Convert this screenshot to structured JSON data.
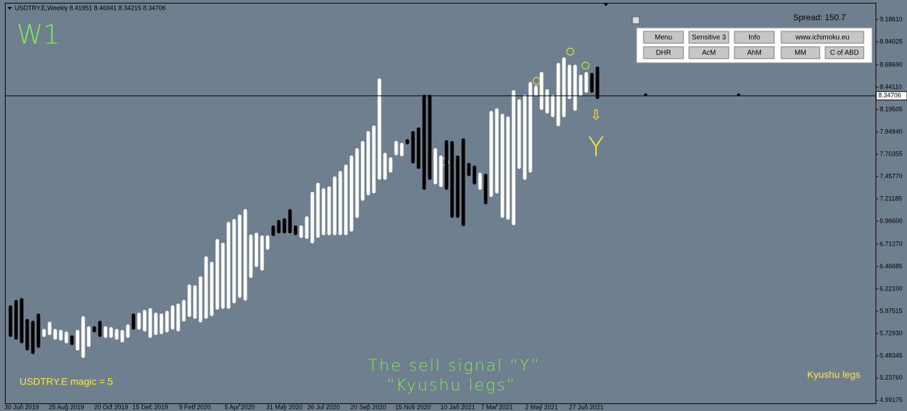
{
  "chart_data": {
    "type": "range_bar",
    "title": "USDTRY.E,Weekly  8.41951 8.46941 8.34215 8.34706",
    "timeframe": "W1",
    "spread": "Spread: 150.7",
    "signal_arrow": "⇩",
    "signal_letter": "Y",
    "caption": [
      "The sell signal “Y”",
      "“Kyushu legs”"
    ],
    "magic_label": "USDTRY.E  magic = 5",
    "corner_label": "Kyushu legs",
    "current_price": {
      "value": 8.34706,
      "label": "8.34706"
    },
    "ylim": [
      4.96,
      9.34
    ],
    "yticks": [
      {
        "value": 9.1861,
        "label": "9.18610"
      },
      {
        "value": 8.94025,
        "label": "8.94025"
      },
      {
        "value": 8.6869,
        "label": "8.68690"
      },
      {
        "value": 8.4411,
        "label": "8.44110"
      },
      {
        "value": 8.19505,
        "label": "8.19505"
      },
      {
        "value": 7.9494,
        "label": "7.94940"
      },
      {
        "value": 7.70355,
        "label": "7.70355"
      },
      {
        "value": 7.4577,
        "label": "7.45770"
      },
      {
        "value": 7.21185,
        "label": "7.21185"
      },
      {
        "value": 6.966,
        "label": "6.96600"
      },
      {
        "value": 6.7127,
        "label": "6.71270"
      },
      {
        "value": 6.46685,
        "label": "6.46685"
      },
      {
        "value": 6.221,
        "label": "6.22100"
      },
      {
        "value": 5.97515,
        "label": "5.97515"
      },
      {
        "value": 5.7293,
        "label": "5.72930"
      },
      {
        "value": 5.48345,
        "label": "5.48345"
      },
      {
        "value": 5.2376,
        "label": "5.23760"
      },
      {
        "value": 4.99175,
        "label": "4.99175"
      }
    ],
    "xticks": [
      {
        "value": 2,
        "label": "30 Jun 2019"
      },
      {
        "value": 10,
        "label": "25 Aug 2019"
      },
      {
        "value": 18,
        "label": "20 Oct 2019"
      },
      {
        "value": 25,
        "label": "15 Dec 2019"
      },
      {
        "value": 33,
        "label": "9 Feb 2020"
      },
      {
        "value": 41,
        "label": "5 Apr 2020"
      },
      {
        "value": 49,
        "label": "31 May 2020"
      },
      {
        "value": 56,
        "label": "26 Jul 2020"
      },
      {
        "value": 64,
        "label": "20 Sep 2020"
      },
      {
        "value": 72,
        "label": "15 Nov 2020"
      },
      {
        "value": 80,
        "label": "10 Jan 2021"
      },
      {
        "value": 87,
        "label": "7 Mar 2021"
      },
      {
        "value": 95,
        "label": "2 May 2021"
      },
      {
        "value": 103,
        "label": "27 Jun 2021"
      }
    ],
    "high": [
      6.02,
      6.08,
      6.1,
      5.87,
      5.85,
      5.93,
      5.76,
      5.84,
      5.76,
      5.75,
      5.73,
      5.69,
      5.75,
      5.9,
      5.79,
      5.79,
      5.85,
      5.79,
      5.78,
      5.76,
      5.75,
      5.81,
      5.93,
      5.94,
      5.97,
      5.99,
      5.94,
      5.93,
      5.96,
      6.02,
      6.04,
      6.08,
      6.25,
      6.24,
      6.34,
      6.56,
      6.5,
      6.75,
      6.71,
      6.94,
      6.97,
      7.02,
      7.08,
      6.8,
      6.82,
      6.79,
      6.79,
      6.9,
      6.96,
      6.98,
      7.08,
      6.9,
      6.9,
      7.0,
      7.27,
      7.37,
      7.31,
      7.33,
      7.44,
      7.5,
      7.57,
      7.67,
      7.75,
      7.83,
      7.94,
      8.0,
      8.52,
      7.7,
      7.65,
      7.83,
      7.81,
      7.85,
      7.94,
      7.98,
      8.34,
      8.34,
      7.75,
      7.67,
      7.84,
      7.83,
      7.67,
      7.86,
      7.59,
      7.56,
      7.48,
      7.47,
      8.16,
      8.19,
      8.13,
      8.1,
      8.39,
      8.29,
      8.34,
      8.48,
      8.44,
      8.59,
      8.4,
      8.34,
      8.69,
      8.75,
      8.67,
      8.67,
      8.56,
      8.59,
      8.58,
      8.65
    ],
    "low": [
      5.71,
      5.68,
      5.64,
      5.56,
      5.52,
      5.59,
      5.71,
      5.73,
      5.68,
      5.67,
      5.64,
      5.62,
      5.56,
      5.48,
      5.6,
      5.76,
      5.71,
      5.7,
      5.7,
      5.68,
      5.65,
      5.7,
      5.79,
      5.79,
      5.77,
      5.7,
      5.73,
      5.74,
      5.76,
      5.79,
      5.77,
      5.88,
      5.93,
      5.91,
      5.87,
      5.91,
      5.94,
      6.01,
      6.02,
      6.02,
      6.08,
      6.14,
      6.11,
      6.36,
      6.48,
      6.44,
      6.67,
      6.82,
      6.85,
      6.85,
      6.85,
      6.83,
      6.8,
      6.79,
      6.74,
      6.8,
      6.83,
      6.83,
      6.83,
      6.83,
      6.83,
      6.87,
      7.02,
      7.21,
      7.27,
      7.29,
      7.44,
      7.44,
      7.52,
      7.71,
      7.7,
      7.83,
      7.62,
      7.56,
      7.33,
      7.44,
      7.39,
      7.36,
      7.33,
      7.02,
      7.02,
      6.93,
      7.48,
      7.39,
      7.33,
      7.17,
      7.25,
      7.29,
      7.02,
      7.0,
      6.94,
      7.56,
      7.44,
      7.52,
      8.36,
      8.21,
      8.17,
      8.13,
      8.03,
      8.13,
      8.33,
      8.2,
      8.36,
      8.4,
      8.4,
      8.33
    ],
    "bar_colors": [
      "black",
      "black",
      "black",
      "black",
      "black",
      "black",
      "white",
      "white",
      "white",
      "white",
      "white",
      "black",
      "white",
      "white",
      "white",
      "black",
      "black",
      "white",
      "white",
      "white",
      "white",
      "white",
      "black",
      "white",
      "white",
      "white",
      "white",
      "white",
      "white",
      "white",
      "white",
      "white",
      "white",
      "white",
      "white",
      "white",
      "white",
      "white",
      "white",
      "white",
      "white",
      "white",
      "white",
      "white",
      "white",
      "white",
      "white",
      "black",
      "black",
      "black",
      "black",
      "black",
      "white",
      "white",
      "white",
      "white",
      "white",
      "white",
      "white",
      "white",
      "white",
      "white",
      "white",
      "white",
      "white",
      "white",
      "white",
      "white",
      "white",
      "white",
      "white",
      "black",
      "black",
      "black",
      "black",
      "black",
      "white",
      "white",
      "black",
      "black",
      "black",
      "black",
      "black",
      "black",
      "white",
      "black",
      "white",
      "white",
      "white",
      "white",
      "white",
      "white",
      "white",
      "white",
      "white",
      "white",
      "white",
      "white",
      "white",
      "white",
      "white",
      "white",
      "white",
      "white",
      "black",
      "black"
    ]
  },
  "panel": {
    "buttons": [
      [
        "Menu",
        "Sensitive 3",
        "Info",
        "www.ichimoku.eu"
      ],
      [
        "DHR",
        "AcM",
        "AhM",
        "MM",
        "C of ABD"
      ]
    ]
  }
}
